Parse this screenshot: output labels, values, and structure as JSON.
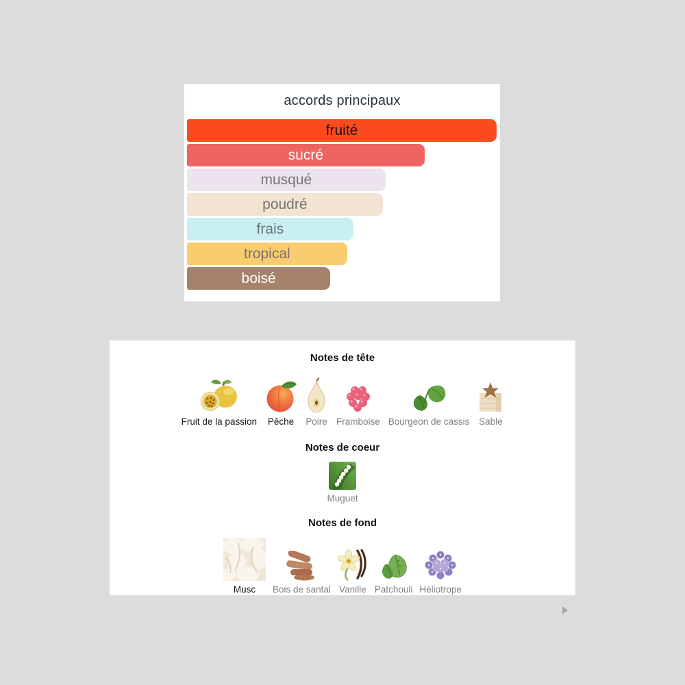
{
  "page": {
    "background": "#dcdcdc"
  },
  "accords_card": {
    "title": "accords principaux",
    "title_color": "#273240",
    "accords": [
      {
        "label": "fruité",
        "width_pct": 100,
        "bg": "#fb4a1e",
        "text_color": "#161616"
      },
      {
        "label": "sucré",
        "width_pct": 76.7,
        "bg": "#ee6461",
        "text_color": "#ffffff"
      },
      {
        "label": "musqué",
        "width_pct": 64.1,
        "bg": "#ece3ef",
        "text_color": "#747474"
      },
      {
        "label": "poudré",
        "width_pct": 63.2,
        "bg": "#f2e3d2",
        "text_color": "#747474"
      },
      {
        "label": "frais",
        "width_pct": 53.7,
        "bg": "#c8f0f2",
        "text_color": "#6b7272"
      },
      {
        "label": "tropical",
        "width_pct": 51.7,
        "bg": "#f7cd70",
        "text_color": "#7d7263"
      },
      {
        "label": "boisé",
        "width_pct": 46.3,
        "bg": "#a5836b",
        "text_color": "#ffffff"
      }
    ]
  },
  "chart_data": {
    "type": "bar",
    "title": "accords principaux",
    "categories": [
      "fruité",
      "sucré",
      "musqué",
      "poudré",
      "frais",
      "tropical",
      "boisé"
    ],
    "values": [
      100,
      76.7,
      64.1,
      63.2,
      53.7,
      51.7,
      46.3
    ],
    "xlabel": "",
    "ylabel": "",
    "orientation": "horizontal",
    "value_unit": "percent-of-max-width"
  },
  "notes_card": {
    "emphasis_color": "#191919",
    "label_color": "#7f7f7f",
    "sections": [
      {
        "title": "Notes de tête",
        "notes": [
          {
            "name": "Fruit de la passion",
            "icon": "passion-fruit",
            "emphasis": true
          },
          {
            "name": "Pêche",
            "icon": "peach",
            "emphasis": true
          },
          {
            "name": "Poire",
            "icon": "pear",
            "emphasis": false
          },
          {
            "name": "Framboise",
            "icon": "raspberry",
            "emphasis": false
          },
          {
            "name": "Bourgeon de cassis",
            "icon": "blackcurrant-bud",
            "emphasis": false
          },
          {
            "name": "Sable",
            "icon": "sand-starfish",
            "emphasis": false
          }
        ]
      },
      {
        "title": "Notes de coeur",
        "notes": [
          {
            "name": "Muguet",
            "icon": "lily-of-the-valley",
            "emphasis": false
          }
        ]
      },
      {
        "title": "Notes de fond",
        "notes": [
          {
            "name": "Musc",
            "icon": "musk-cotton",
            "emphasis": true
          },
          {
            "name": "Bois de santal",
            "icon": "sandalwood",
            "emphasis": false
          },
          {
            "name": "Vanille",
            "icon": "vanilla",
            "emphasis": false
          },
          {
            "name": "Patchouli",
            "icon": "patchouli",
            "emphasis": false
          },
          {
            "name": "Héliotrope",
            "icon": "heliotrope",
            "emphasis": false
          }
        ]
      }
    ]
  },
  "icons": {
    "carousel_next": "chevron-right"
  }
}
